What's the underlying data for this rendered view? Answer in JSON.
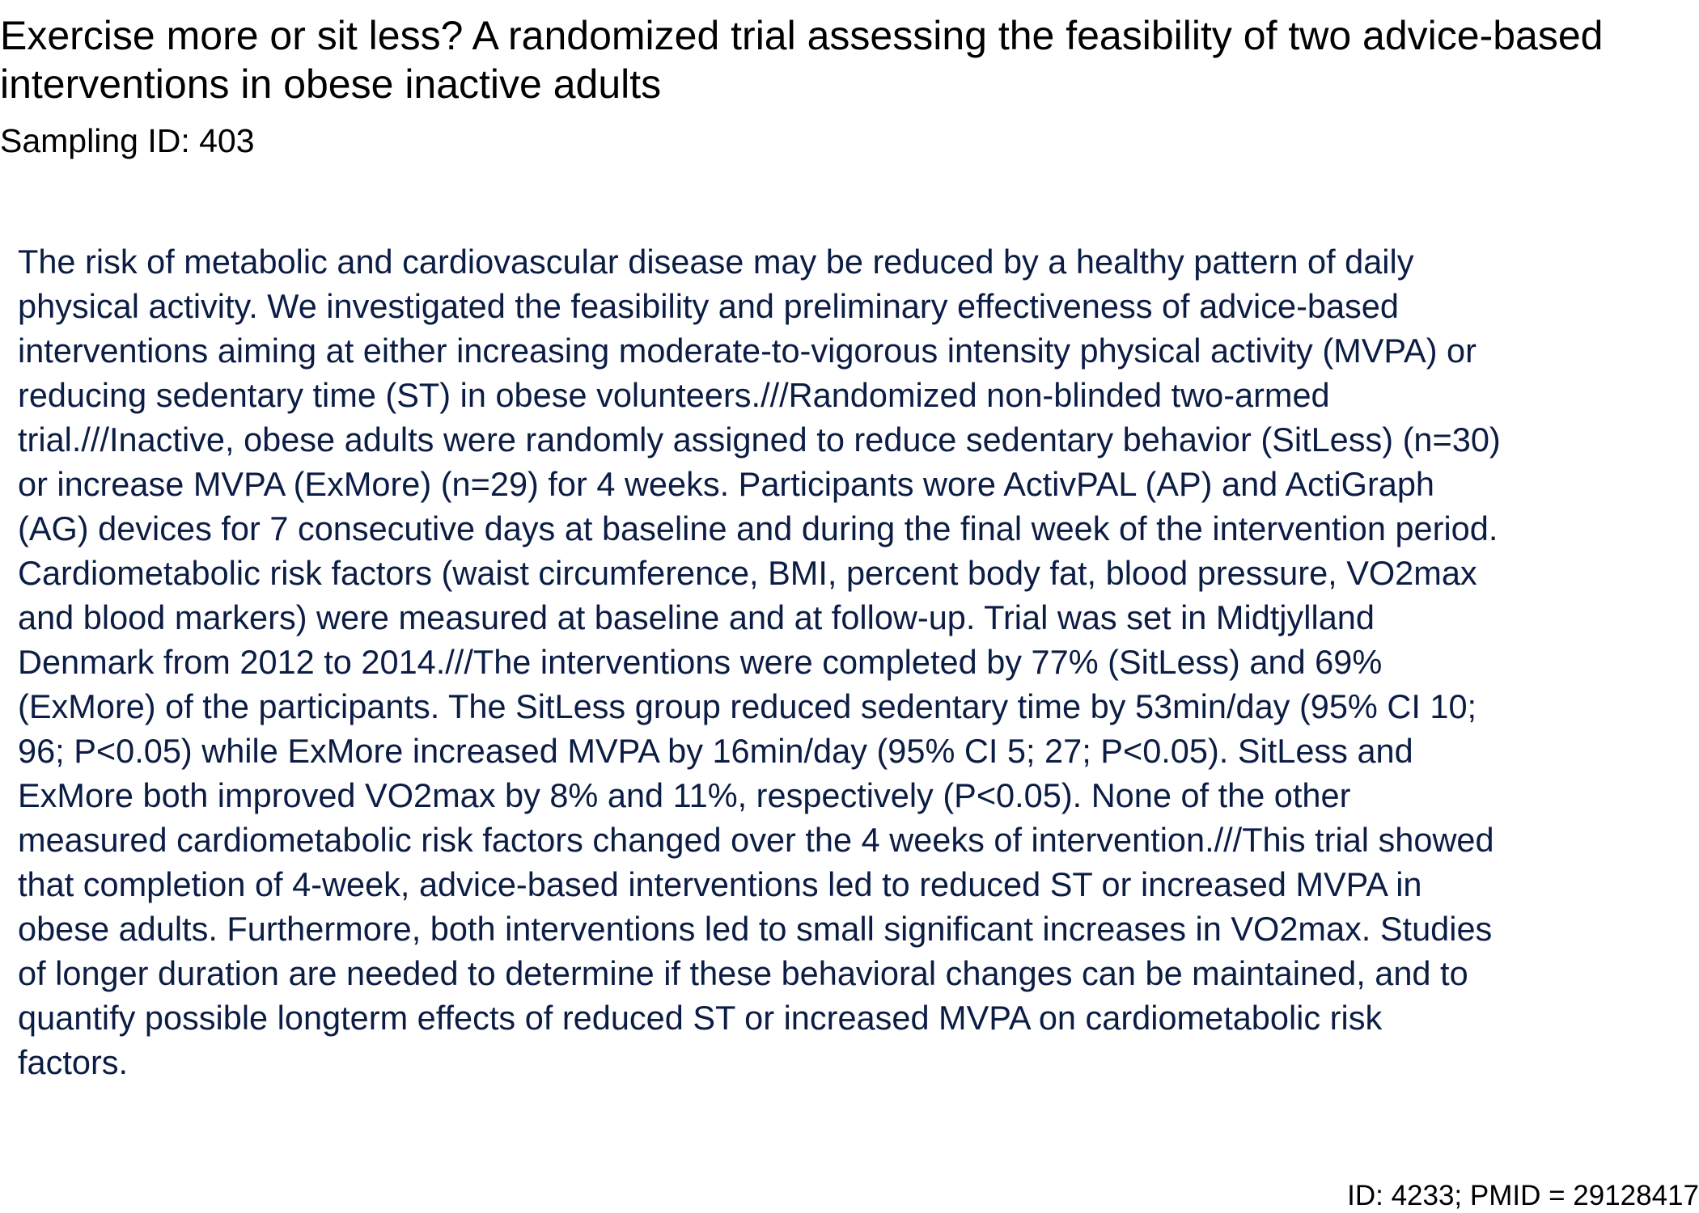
{
  "document": {
    "title": "Exercise more or sit less? A randomized trial assessing the feasibility of two advice-based interventions in obese inactive adults",
    "sampling_id": "Sampling ID: 403",
    "abstract_lines": "The risk of metabolic and cardiovascular disease may be reduced by a healthy pattern of daily\nphysical activity. We investigated the feasibility and preliminary effectiveness of advice-based\ninterventions aiming at either increasing moderate-to-vigorous intensity physical activity (MVPA) or\nreducing sedentary time (ST) in obese volunteers.///Randomized non-blinded two-armed\ntrial.///Inactive, obese adults were randomly assigned to reduce sedentary behavior (SitLess) (n=30)\nor increase MVPA (ExMore) (n=29) for 4 weeks. Participants wore ActivPAL (AP) and ActiGraph\n(AG) devices for 7 consecutive days at baseline and during the final week of the intervention period.\nCardiometabolic risk factors (waist circumference, BMI, percent body fat, blood pressure, VO2max\nand blood markers) were measured at baseline and at follow-up. Trial was set in Midtjylland\nDenmark from 2012 to 2014.///The interventions were completed by 77% (SitLess) and 69%\n(ExMore) of the participants. The SitLess group reduced sedentary time by 53min/day (95% CI 10;\n96; P<0.05) while ExMore increased MVPA by 16min/day (95% CI 5; 27; P<0.05). SitLess and\nExMore both improved VO2max by 8% and 11%, respectively (P<0.05). None of the other\nmeasured cardiometabolic risk factors changed over the 4 weeks of intervention.///This trial showed\nthat completion of 4-week, advice-based interventions led to reduced ST or increased MVPA in\nobese adults. Furthermore, both interventions led to small significant increases in VO2max. Studies\nof longer duration are needed to determine if these behavioral changes can be maintained, and to\nquantify possible longterm effects of reduced ST or increased MVPA on cardiometabolic risk\nfactors.",
    "footer_id": "ID: 4233; PMID = 29128417"
  },
  "colors": {
    "title_text": "#000000",
    "abstract_text": "#0c1d45",
    "background": "#ffffff"
  }
}
